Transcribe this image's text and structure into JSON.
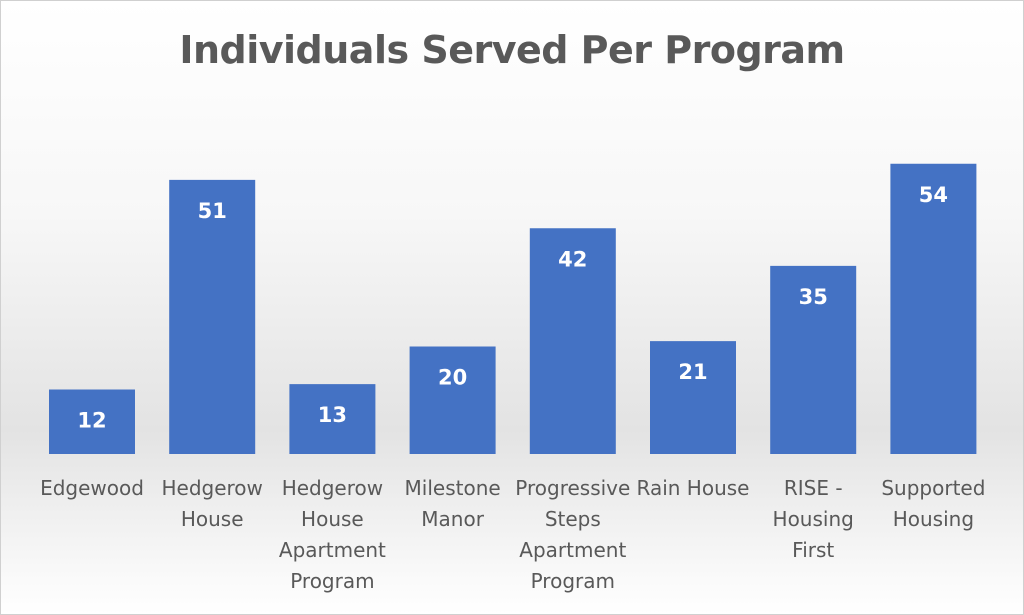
{
  "chart_data": {
    "type": "bar",
    "title": "Individuals Served Per Program",
    "xlabel": "",
    "ylabel": "",
    "ylim": [
      0,
      60
    ],
    "grid": false,
    "legend": "none",
    "categories": [
      "Edgewood",
      "Hedgerow House",
      "Hedgerow House Apartment Program",
      "Milestone Manor",
      "Progressive Steps Apartment Program",
      "Rain House",
      "RISE - Housing First",
      "Supported Housing"
    ],
    "category_lines": [
      [
        "Edgewood"
      ],
      [
        "Hedgerow",
        "House"
      ],
      [
        "Hedgerow",
        "House",
        "Apartment",
        "Program"
      ],
      [
        "Milestone",
        "Manor"
      ],
      [
        "Progressive",
        "Steps",
        "Apartment",
        "Program"
      ],
      [
        "Rain House"
      ],
      [
        "RISE -",
        "Housing",
        "First"
      ],
      [
        "Supported",
        "Housing"
      ]
    ],
    "values": [
      12,
      51,
      13,
      20,
      42,
      21,
      35,
      54
    ],
    "colors": {
      "bar": "#4472c4",
      "data_label": "#ffffff",
      "text": "#595959"
    }
  }
}
